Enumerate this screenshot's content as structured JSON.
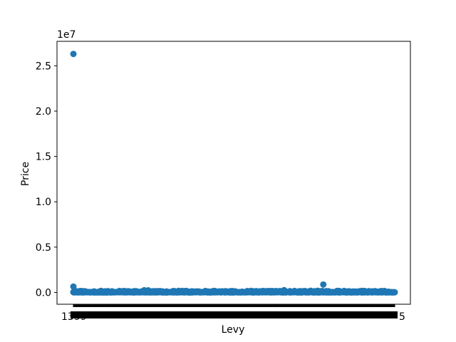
{
  "chart_data": {
    "type": "scatter",
    "xlabel": "Levy",
    "ylabel": "Price",
    "y_offset_label": "1e7",
    "y_scale": "linear",
    "grid": false,
    "ylim": [
      -1300000,
      27700000
    ],
    "y_ticks": [
      0,
      5000000,
      10000000,
      15000000,
      20000000,
      25000000
    ],
    "y_tick_labels": [
      "0.0",
      "0.5",
      "1.0",
      "1.5",
      "2.0",
      "2.5"
    ],
    "x_tick_note": "categorical Levy values; several thousand overlapping tick labels rendered as a dense black band",
    "x_tick_labels_visible": [
      "1399",
      "5"
    ],
    "x_category_count": 559,
    "marker_color": "#1f77b4",
    "points_notable": [
      {
        "x_index": 0,
        "y": 26307500
      },
      {
        "x_index": 0,
        "y": 650000
      },
      {
        "x_index": 434,
        "y": 872946
      },
      {
        "x_index": 366,
        "y": 250000
      },
      {
        "x_index": 123,
        "y": 240000
      },
      {
        "x_index": 130,
        "y": 230000
      },
      {
        "x_index": 424,
        "y": 180000
      }
    ]
  }
}
